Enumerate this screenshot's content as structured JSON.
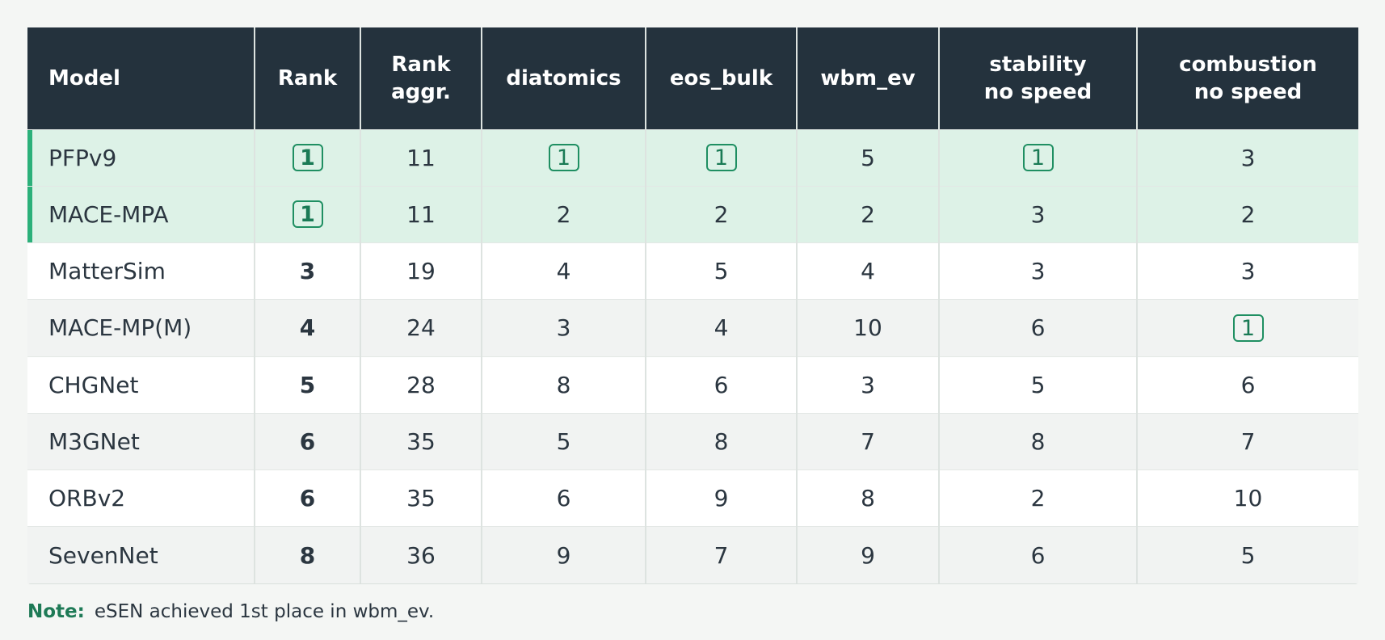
{
  "table": {
    "columns": [
      "Model",
      "Rank",
      "Rank\naggr.",
      "diatomics",
      "eos_bulk",
      "wbm_ev",
      "stability\nno speed",
      "combustion\nno speed"
    ],
    "rows": [
      {
        "model": "PFPv9",
        "rank": "1",
        "aggr": "11",
        "diatomics": "1",
        "eos_bulk": "1",
        "wbm_ev": "5",
        "stability": "1",
        "combustion": "3"
      },
      {
        "model": "MACE-MPA",
        "rank": "1",
        "aggr": "11",
        "diatomics": "2",
        "eos_bulk": "2",
        "wbm_ev": "2",
        "stability": "3",
        "combustion": "2"
      },
      {
        "model": "MatterSim",
        "rank": "3",
        "aggr": "19",
        "diatomics": "4",
        "eos_bulk": "5",
        "wbm_ev": "4",
        "stability": "3",
        "combustion": "3"
      },
      {
        "model": "MACE-MP(M)",
        "rank": "4",
        "aggr": "24",
        "diatomics": "3",
        "eos_bulk": "4",
        "wbm_ev": "10",
        "stability": "6",
        "combustion": "1"
      },
      {
        "model": "CHGNet",
        "rank": "5",
        "aggr": "28",
        "diatomics": "8",
        "eos_bulk": "6",
        "wbm_ev": "3",
        "stability": "5",
        "combustion": "6"
      },
      {
        "model": "M3GNet",
        "rank": "6",
        "aggr": "35",
        "diatomics": "5",
        "eos_bulk": "8",
        "wbm_ev": "7",
        "stability": "8",
        "combustion": "7"
      },
      {
        "model": "ORBv2",
        "rank": "6",
        "aggr": "35",
        "diatomics": "6",
        "eos_bulk": "9",
        "wbm_ev": "8",
        "stability": "2",
        "combustion": "10"
      },
      {
        "model": "SevenNet",
        "rank": "8",
        "aggr": "36",
        "diatomics": "9",
        "eos_bulk": "7",
        "wbm_ev": "9",
        "stability": "6",
        "combustion": "5"
      }
    ],
    "highlight_color": "#ddf2e7",
    "accent_color": "#2bb07a",
    "header_color": "#24323d"
  },
  "note": {
    "label": "Note:",
    "text": "eSEN achieved 1st place in wbm_ev."
  }
}
